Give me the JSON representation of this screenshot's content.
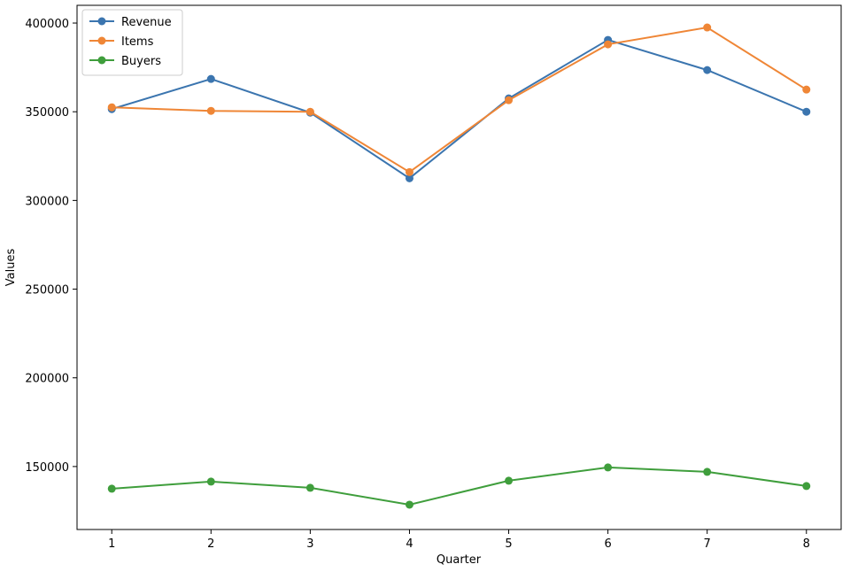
{
  "chart_data": {
    "type": "line",
    "title": "",
    "xlabel": "Quarter",
    "ylabel": "Values",
    "x": [
      1,
      2,
      3,
      4,
      5,
      6,
      7,
      8
    ],
    "x_ticks": [
      "1",
      "2",
      "3",
      "4",
      "5",
      "6",
      "7",
      "8"
    ],
    "xlim": [
      0.65,
      8.35
    ],
    "ylim": [
      114500,
      410000
    ],
    "y_ticks": [
      150000,
      200000,
      250000,
      300000,
      350000,
      400000
    ],
    "y_tick_labels": [
      "150000",
      "200000",
      "250000",
      "300000",
      "350000",
      "400000"
    ],
    "grid": false,
    "legend": "top-left",
    "series": [
      {
        "name": "Revenue",
        "color": "#3b75af",
        "values": [
          351500,
          368500,
          349500,
          312500,
          357500,
          390500,
          373500,
          350000
        ]
      },
      {
        "name": "Items",
        "color": "#ef8636",
        "values": [
          352500,
          350500,
          350000,
          316000,
          356500,
          388000,
          397500,
          362500
        ]
      },
      {
        "name": "Buyers",
        "color": "#3f9e3c",
        "values": [
          137500,
          141500,
          138000,
          128500,
          142000,
          149500,
          147000,
          139000
        ]
      }
    ]
  }
}
